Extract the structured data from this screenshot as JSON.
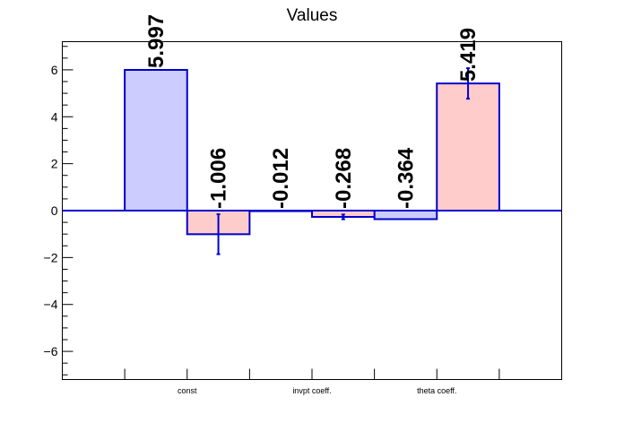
{
  "chart_data": {
    "type": "bar",
    "title": "Values",
    "categories": [
      "const",
      "invpt coeff.",
      "theta coeff."
    ],
    "series": [
      {
        "values": [
          5.997,
          -0.012,
          -0.364
        ],
        "labels": [
          "5.997",
          "-0.012",
          "-0.364"
        ],
        "errors": [
          0,
          0,
          0
        ],
        "fill": "#ccccff",
        "stroke": "#0000cc"
      },
      {
        "values": [
          -1.006,
          -0.268,
          5.419
        ],
        "labels": [
          "-1.006",
          "-0.268",
          "5.419"
        ],
        "errors": [
          0.85,
          0.1,
          0.65
        ],
        "fill": "#ffcccc",
        "stroke": "#0000cc"
      }
    ],
    "ylim": [
      -7.2,
      7.2
    ],
    "yticks": [
      -6,
      -4,
      -2,
      0,
      2,
      4,
      6
    ],
    "ytick_labels": [
      "−6",
      "−4",
      "−2",
      "0",
      "2",
      "4",
      "6"
    ],
    "grid": false,
    "zero_line_color": "#0000cc"
  }
}
